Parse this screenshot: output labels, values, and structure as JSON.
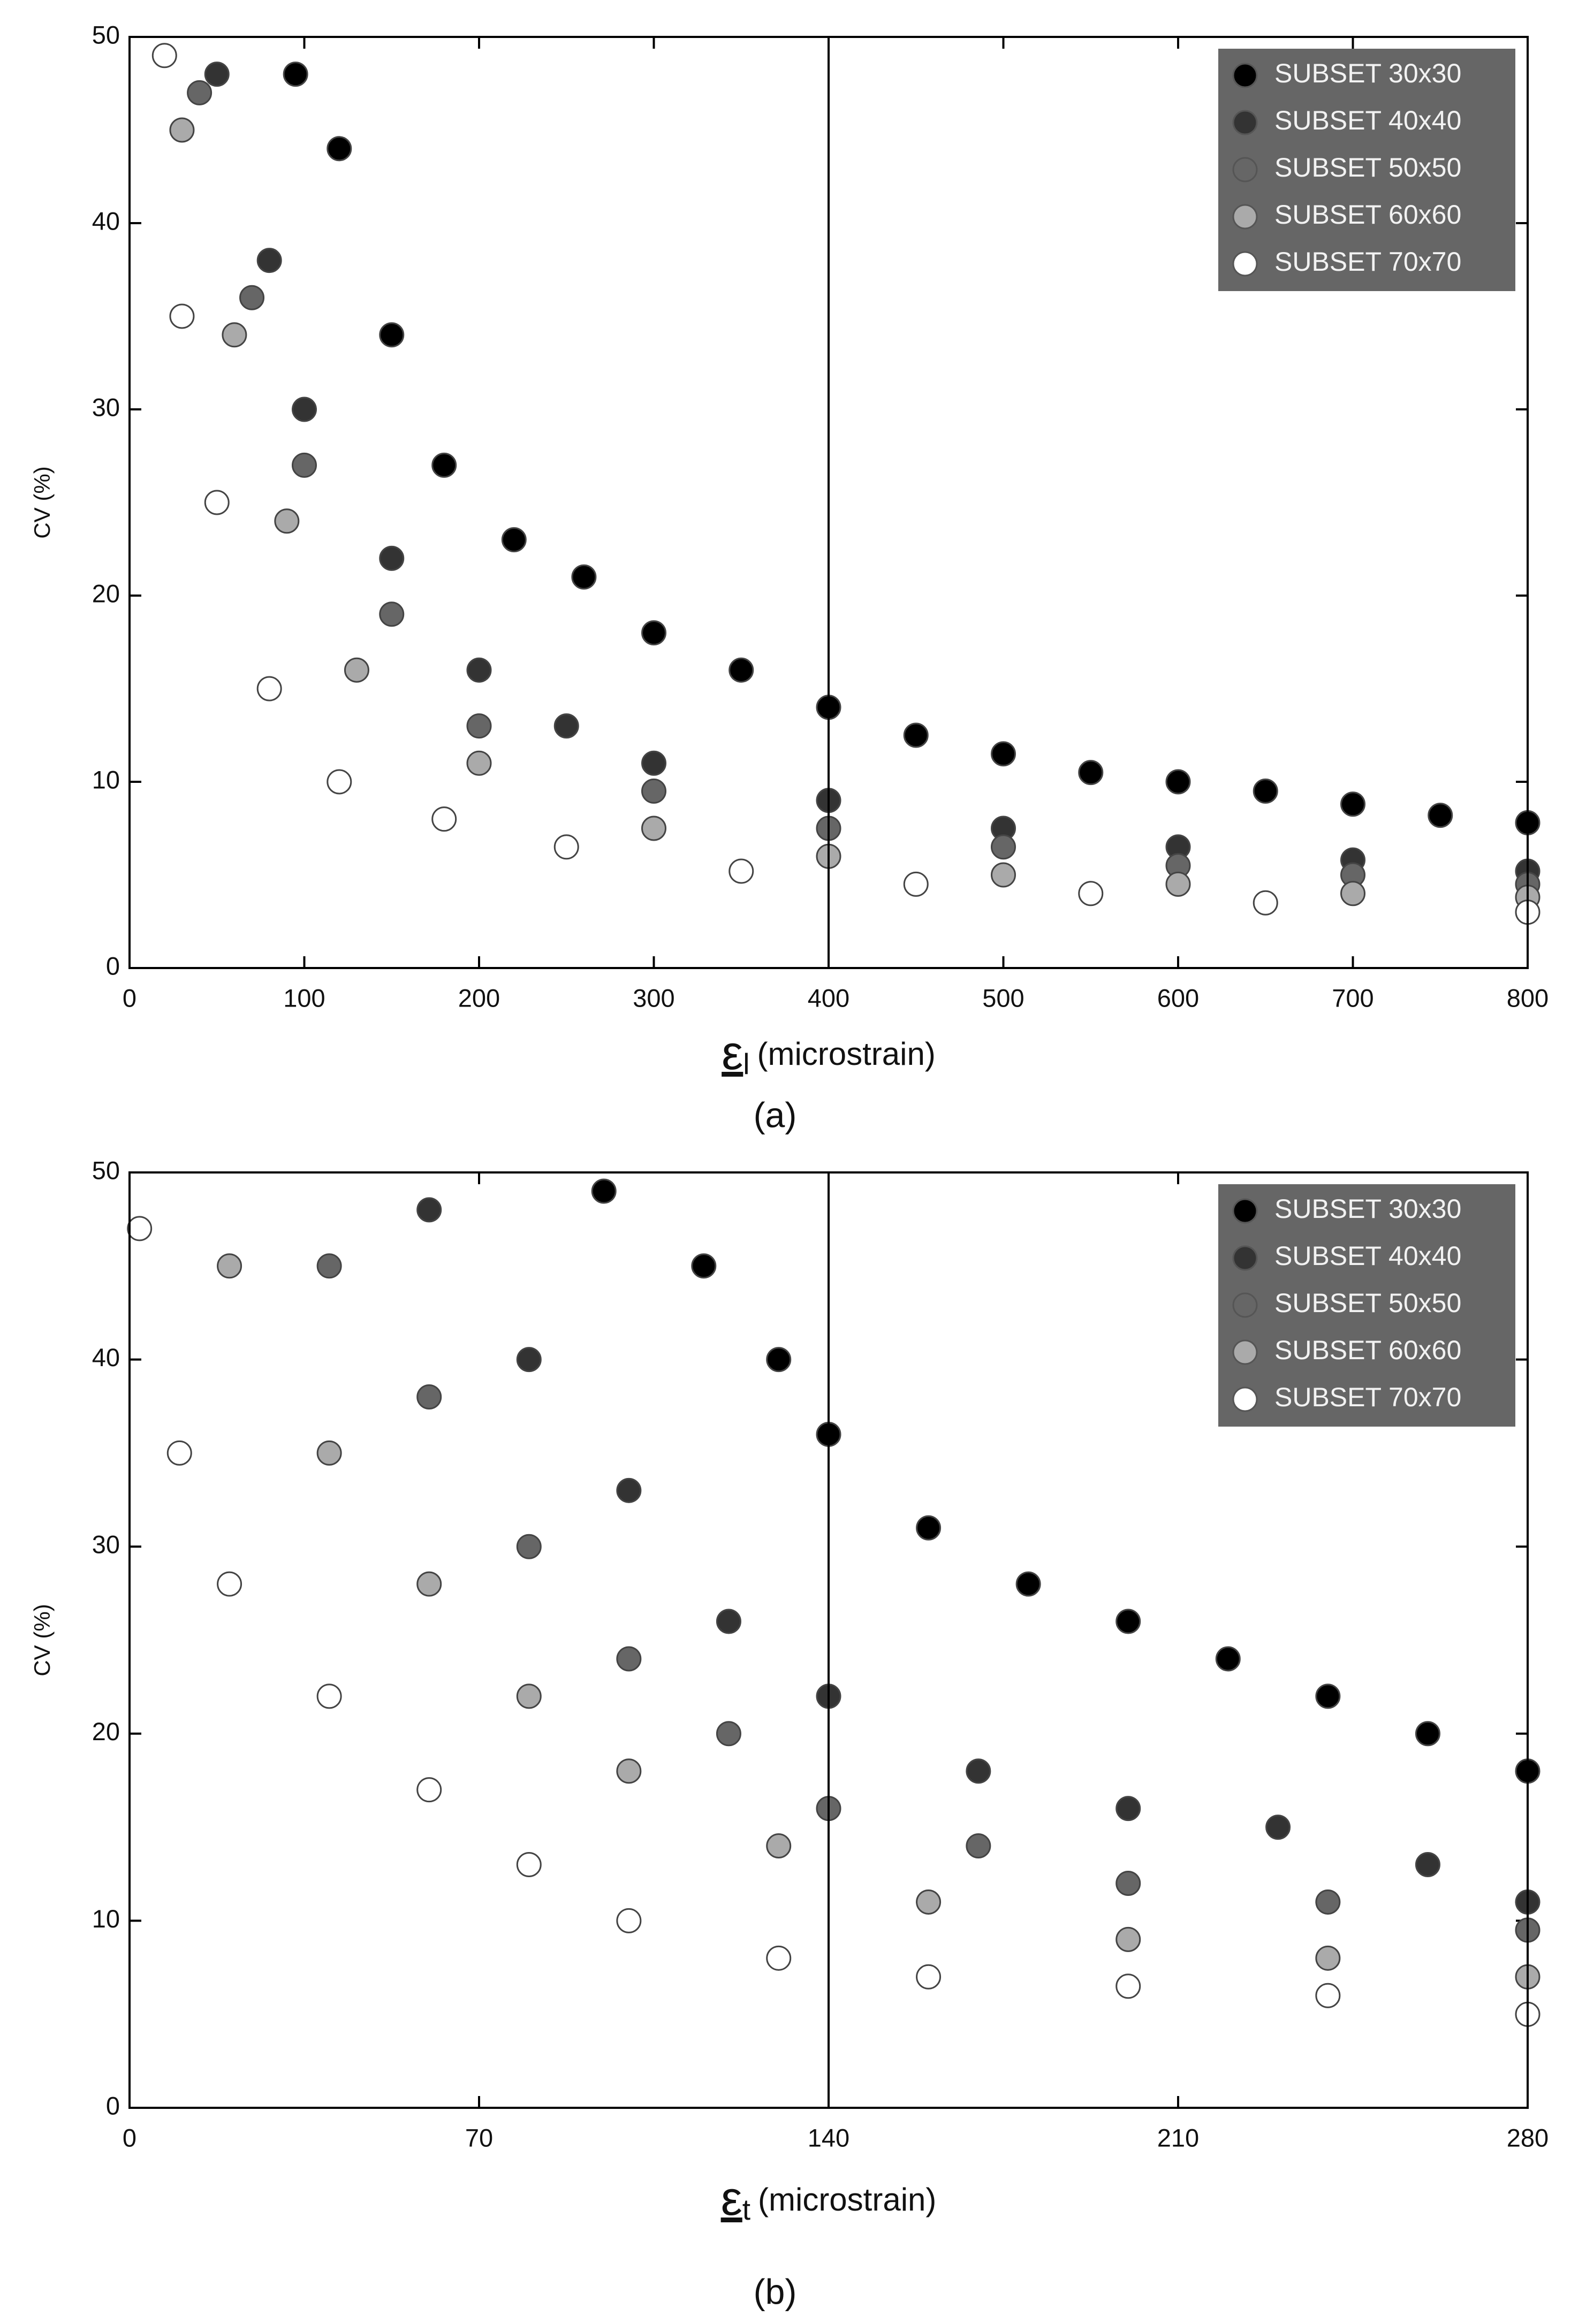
{
  "chart_data": [
    {
      "type": "scatter",
      "caption": "(a)",
      "ylabel": "CV (%)",
      "xlabel_symbol": "ε",
      "xlabel_subscript": "l",
      "xlabel": "(microstrain)",
      "xlim": [
        0,
        800
      ],
      "ylim": [
        0,
        50
      ],
      "xticks": [
        0,
        100,
        200,
        300,
        400,
        500,
        600,
        700,
        800
      ],
      "yticks": [
        0,
        10,
        20,
        30,
        40,
        50
      ],
      "vline": 400,
      "legend": "upper right",
      "series": [
        {
          "name": "SUBSET 30x30",
          "color": "#000000",
          "x": [
            95,
            120,
            150,
            180,
            220,
            260,
            300,
            350,
            400,
            450,
            500,
            550,
            600,
            650,
            700,
            750,
            800
          ],
          "y": [
            48,
            44,
            34,
            27,
            23,
            21,
            18,
            16,
            14,
            12.5,
            11.5,
            10.5,
            10,
            9.5,
            8.8,
            8.2,
            7.8
          ]
        },
        {
          "name": "SUBSET 40x40",
          "color": "#333333",
          "x": [
            50,
            80,
            100,
            150,
            200,
            250,
            300,
            400,
            500,
            600,
            700,
            800
          ],
          "y": [
            48,
            38,
            30,
            22,
            16,
            13,
            11,
            9,
            7.5,
            6.5,
            5.8,
            5.2
          ]
        },
        {
          "name": "SUBSET 50x50",
          "color": "#666666",
          "x": [
            40,
            70,
            100,
            150,
            200,
            300,
            400,
            500,
            600,
            700,
            800
          ],
          "y": [
            47,
            36,
            27,
            19,
            13,
            9.5,
            7.5,
            6.5,
            5.5,
            5,
            4.5
          ]
        },
        {
          "name": "SUBSET 60x60",
          "color": "#aaaaaa",
          "x": [
            30,
            60,
            90,
            130,
            200,
            300,
            400,
            500,
            600,
            700,
            800
          ],
          "y": [
            45,
            34,
            24,
            16,
            11,
            7.5,
            6,
            5,
            4.5,
            4,
            3.8
          ]
        },
        {
          "name": "SUBSET 70x70",
          "color": "#ffffff",
          "x": [
            20,
            30,
            50,
            80,
            120,
            180,
            250,
            350,
            450,
            550,
            650,
            800
          ],
          "y": [
            49,
            35,
            25,
            15,
            10,
            8,
            6.5,
            5.2,
            4.5,
            4,
            3.5,
            3
          ]
        }
      ]
    },
    {
      "type": "scatter",
      "caption": "(b)",
      "ylabel": "CV (%)",
      "xlabel_symbol": "ε",
      "xlabel_subscript": "t",
      "xlabel": "(microstrain)",
      "xlim": [
        0,
        280
      ],
      "ylim": [
        0,
        50
      ],
      "xticks": [
        0,
        70,
        140,
        210,
        280
      ],
      "yticks": [
        0,
        10,
        20,
        30,
        40,
        50
      ],
      "vline": 140,
      "legend": "upper right",
      "series": [
        {
          "name": "SUBSET 30x30",
          "color": "#000000",
          "x": [
            95,
            115,
            130,
            140,
            160,
            180,
            200,
            220,
            240,
            260,
            280
          ],
          "y": [
            49,
            45,
            40,
            36,
            31,
            28,
            26,
            24,
            22,
            20,
            18
          ]
        },
        {
          "name": "SUBSET 40x40",
          "color": "#333333",
          "x": [
            60,
            80,
            100,
            120,
            140,
            170,
            200,
            230,
            260,
            280
          ],
          "y": [
            48,
            40,
            33,
            26,
            22,
            18,
            16,
            15,
            13,
            11
          ]
        },
        {
          "name": "SUBSET 50x50",
          "color": "#666666",
          "x": [
            40,
            60,
            80,
            100,
            120,
            140,
            170,
            200,
            240,
            280
          ],
          "y": [
            45,
            38,
            30,
            24,
            20,
            16,
            14,
            12,
            11,
            9.5
          ]
        },
        {
          "name": "SUBSET 60x60",
          "color": "#aaaaaa",
          "x": [
            20,
            40,
            60,
            80,
            100,
            130,
            160,
            200,
            240,
            280
          ],
          "y": [
            45,
            35,
            28,
            22,
            18,
            14,
            11,
            9,
            8,
            7
          ]
        },
        {
          "name": "SUBSET 70x70",
          "color": "#ffffff",
          "x": [
            2,
            10,
            20,
            40,
            60,
            80,
            100,
            130,
            160,
            200,
            240,
            280
          ],
          "y": [
            47,
            35,
            28,
            22,
            17,
            13,
            10,
            8,
            7,
            6.5,
            6,
            5
          ]
        }
      ]
    }
  ]
}
